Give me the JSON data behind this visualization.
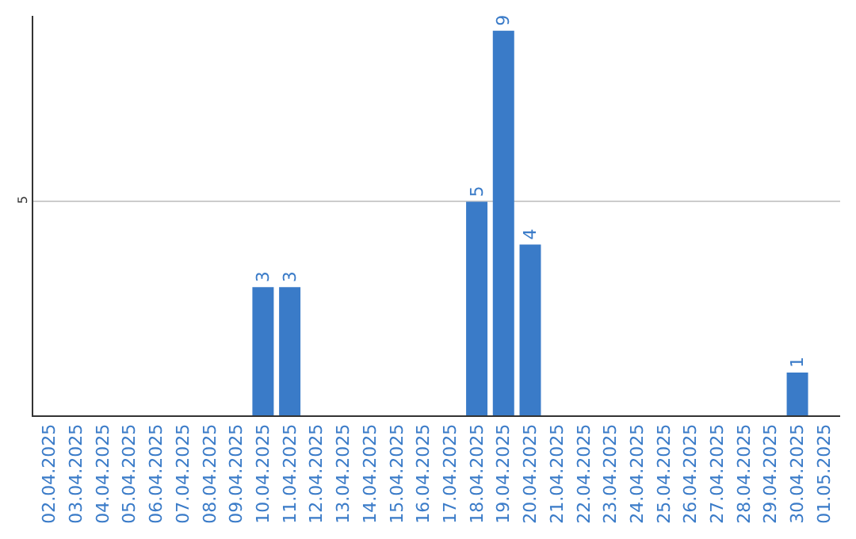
{
  "chart_data": {
    "type": "bar",
    "categories": [
      "02.04.2025",
      "03.04.2025",
      "04.04.2025",
      "05.04.2025",
      "06.04.2025",
      "07.04.2025",
      "08.04.2025",
      "09.04.2025",
      "10.04.2025",
      "11.04.2025",
      "12.04.2025",
      "13.04.2025",
      "14.04.2025",
      "15.04.2025",
      "16.04.2025",
      "17.04.2025",
      "18.04.2025",
      "19.04.2025",
      "20.04.2025",
      "21.04.2025",
      "22.04.2025",
      "23.04.2025",
      "24.04.2025",
      "25.04.2025",
      "26.04.2025",
      "27.04.2025",
      "28.04.2025",
      "29.04.2025",
      "30.04.2025",
      "01.05.2025"
    ],
    "values": [
      0,
      0,
      0,
      0,
      0,
      0,
      0,
      0,
      3,
      3,
      0,
      0,
      0,
      0,
      0,
      0,
      5,
      9,
      4,
      0,
      0,
      0,
      0,
      0,
      0,
      0,
      0,
      0,
      1,
      0
    ],
    "value_labels": [
      null,
      null,
      null,
      null,
      null,
      null,
      null,
      null,
      "3",
      "3",
      null,
      null,
      null,
      null,
      null,
      null,
      "5",
      "9",
      "4",
      null,
      null,
      null,
      null,
      null,
      null,
      null,
      null,
      null,
      "1",
      null
    ],
    "color": "#3a7bc8",
    "ylim": [
      0,
      9.35
    ],
    "yticks": [
      5
    ],
    "grid": "y",
    "legend": false
  }
}
